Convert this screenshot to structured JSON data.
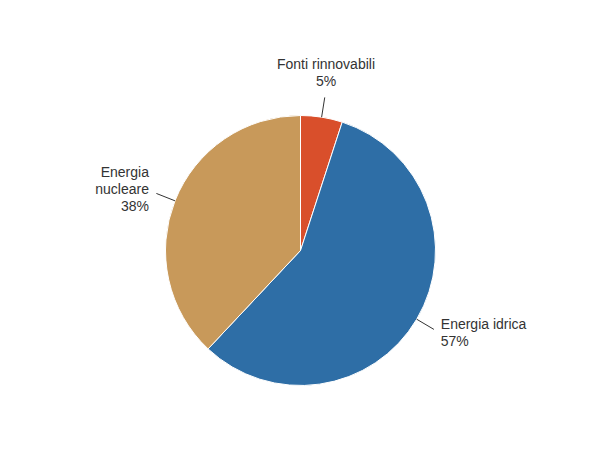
{
  "chart_data": {
    "type": "pie",
    "categories": [
      "Fonti rinnovabili",
      "Energia idrica",
      "Energia\nnucleare"
    ],
    "values": [
      5,
      57,
      38
    ],
    "value_labels": [
      "5%",
      "57%",
      "38%"
    ],
    "colors": [
      "#D94F2B",
      "#2E6EA6",
      "#C8995A"
    ]
  }
}
